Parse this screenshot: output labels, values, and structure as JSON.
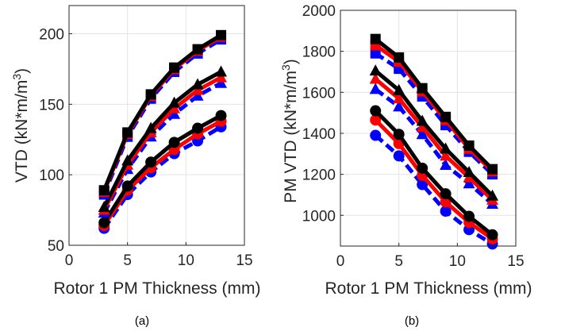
{
  "chart_data": [
    {
      "type": "line",
      "caption": "(a)",
      "xlabel": "Rotor 1 PM Thickness (mm)",
      "ylabel": "VTD (kN*m/m",
      "ylabel_sup": "3",
      "ylabel_close": ")",
      "xlim": [
        0,
        15
      ],
      "ylim": [
        50,
        220
      ],
      "xticks": [
        "0",
        "5",
        "10",
        "15"
      ],
      "yticks": [
        "50",
        "100",
        "150",
        "200"
      ],
      "grid": true,
      "x": [
        3,
        5,
        7,
        9,
        11,
        13
      ],
      "series": [
        {
          "color": "#0000ff",
          "marker": "circle",
          "values": [
            62,
            86,
            102,
            115,
            124,
            134
          ]
        },
        {
          "color": "#ff0000",
          "marker": "circle",
          "values": [
            64,
            89,
            105,
            118,
            129,
            138
          ]
        },
        {
          "color": "#000000",
          "marker": "circle",
          "values": [
            66,
            92,
            109,
            123,
            133,
            142
          ]
        },
        {
          "color": "#0000ff",
          "marker": "triangle",
          "values": [
            73,
            104,
            127,
            143,
            156,
            165
          ]
        },
        {
          "color": "#ff0000",
          "marker": "triangle",
          "values": [
            75,
            107,
            130,
            147,
            160,
            169
          ]
        },
        {
          "color": "#000000",
          "marker": "triangle",
          "values": [
            77,
            110,
            133,
            151,
            164,
            173
          ]
        },
        {
          "color": "#0000ff",
          "marker": "square",
          "values": [
            86,
            127,
            154,
            173,
            186,
            196
          ]
        },
        {
          "color": "#ff0000",
          "marker": "square",
          "values": [
            88,
            129,
            156,
            175,
            188,
            198
          ]
        },
        {
          "color": "#000000",
          "marker": "square",
          "values": [
            89,
            130,
            157,
            176,
            189,
            199
          ]
        }
      ]
    },
    {
      "type": "line",
      "caption": "(b)",
      "xlabel": "Rotor 1 PM Thickness (mm)",
      "ylabel": "PM VTD (kN*m/m",
      "ylabel_sup": "3",
      "ylabel_close": ")",
      "xlim": [
        0,
        15
      ],
      "ylim": [
        850,
        2000
      ],
      "xticks": [
        "0",
        "5",
        "10",
        "15"
      ],
      "yticks": [
        "1000",
        "1200",
        "1400",
        "1600",
        "1800",
        "2000"
      ],
      "grid": true,
      "x": [
        3,
        5,
        7,
        9,
        11,
        13
      ],
      "series": [
        {
          "color": "#0000ff",
          "marker": "circle",
          "values": [
            1390,
            1290,
            1150,
            1020,
            930,
            860
          ]
        },
        {
          "color": "#ff0000",
          "marker": "circle",
          "values": [
            1465,
            1350,
            1195,
            1065,
            965,
            885
          ]
        },
        {
          "color": "#000000",
          "marker": "circle",
          "values": [
            1510,
            1395,
            1230,
            1105,
            995,
            905
          ]
        },
        {
          "color": "#0000ff",
          "marker": "triangle",
          "values": [
            1615,
            1530,
            1395,
            1245,
            1155,
            1055
          ]
        },
        {
          "color": "#ff0000",
          "marker": "triangle",
          "values": [
            1665,
            1570,
            1430,
            1290,
            1185,
            1075
          ]
        },
        {
          "color": "#000000",
          "marker": "triangle",
          "values": [
            1705,
            1610,
            1460,
            1325,
            1210,
            1095
          ]
        },
        {
          "color": "#0000ff",
          "marker": "square",
          "values": [
            1790,
            1715,
            1580,
            1440,
            1310,
            1200
          ]
        },
        {
          "color": "#ff0000",
          "marker": "square",
          "values": [
            1830,
            1750,
            1605,
            1465,
            1325,
            1215
          ]
        },
        {
          "color": "#000000",
          "marker": "square",
          "values": [
            1860,
            1770,
            1620,
            1480,
            1340,
            1225
          ]
        }
      ]
    }
  ]
}
